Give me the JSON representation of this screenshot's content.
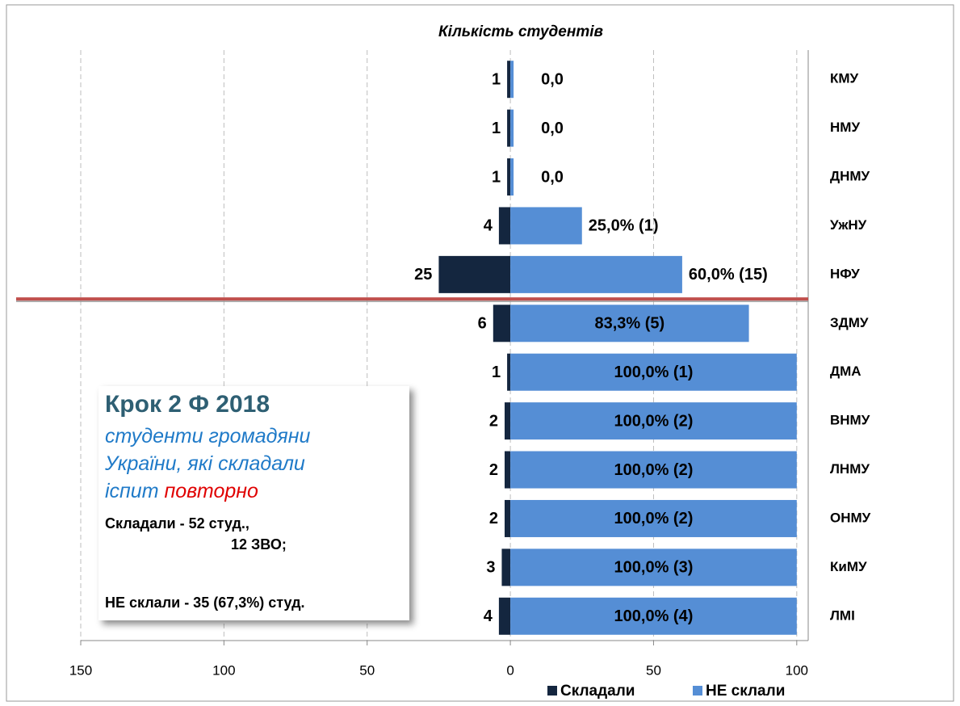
{
  "chart_data": {
    "type": "bar",
    "orientation": "horizontal",
    "title": "Кількість студентів",
    "categories": [
      "КМУ",
      "НМУ",
      "ДНМУ",
      "УжНУ",
      "НФУ",
      "ЗДМУ",
      "ДМА",
      "ВНМУ",
      "ЛНМУ",
      "ОНМУ",
      "КиМУ",
      "ЛМІ"
    ],
    "series": [
      {
        "name": "Складали",
        "color": "#14263f",
        "values": [
          -1,
          -1,
          -1,
          -4,
          -25,
          -6,
          -1,
          -2,
          -2,
          -2,
          -3,
          -4
        ],
        "value_labels": [
          "1",
          "1",
          "1",
          "4",
          "25",
          "6",
          "1",
          "2",
          "2",
          "2",
          "3",
          "4"
        ]
      },
      {
        "name": "НЕ склали",
        "color": "#558ed5",
        "values": [
          0,
          0,
          0,
          25,
          60,
          83.3,
          100,
          100,
          100,
          100,
          100,
          100
        ],
        "value_labels": [
          "0,0",
          "0,0",
          "0,0",
          "25,0% (1)",
          "60,0% (15)",
          "83,3% (5)",
          "100,0% (1)",
          "100,0% (2)",
          "100,0% (2)",
          "100,0% (2)",
          "100,0% (3)",
          "100,0% (4)"
        ]
      }
    ],
    "xlim": [
      -150,
      104
    ],
    "xticks": [
      {
        "value": -150,
        "label": "150"
      },
      {
        "value": -100,
        "label": "100"
      },
      {
        "value": -50,
        "label": "50"
      },
      0,
      50,
      100
    ],
    "grid": true,
    "legend": "bottom",
    "annotations": {
      "box_title": "Крок 2 Ф 2018",
      "box_lines": [
        "студенти громадяни",
        "України, які складали",
        "іспит"
      ],
      "box_highlight": "повторно",
      "line1": "Складали - 52 студ.,",
      "line2": "12 ЗВО;",
      "line3": "НЕ склали - 35 (67,3%) студ."
    }
  }
}
